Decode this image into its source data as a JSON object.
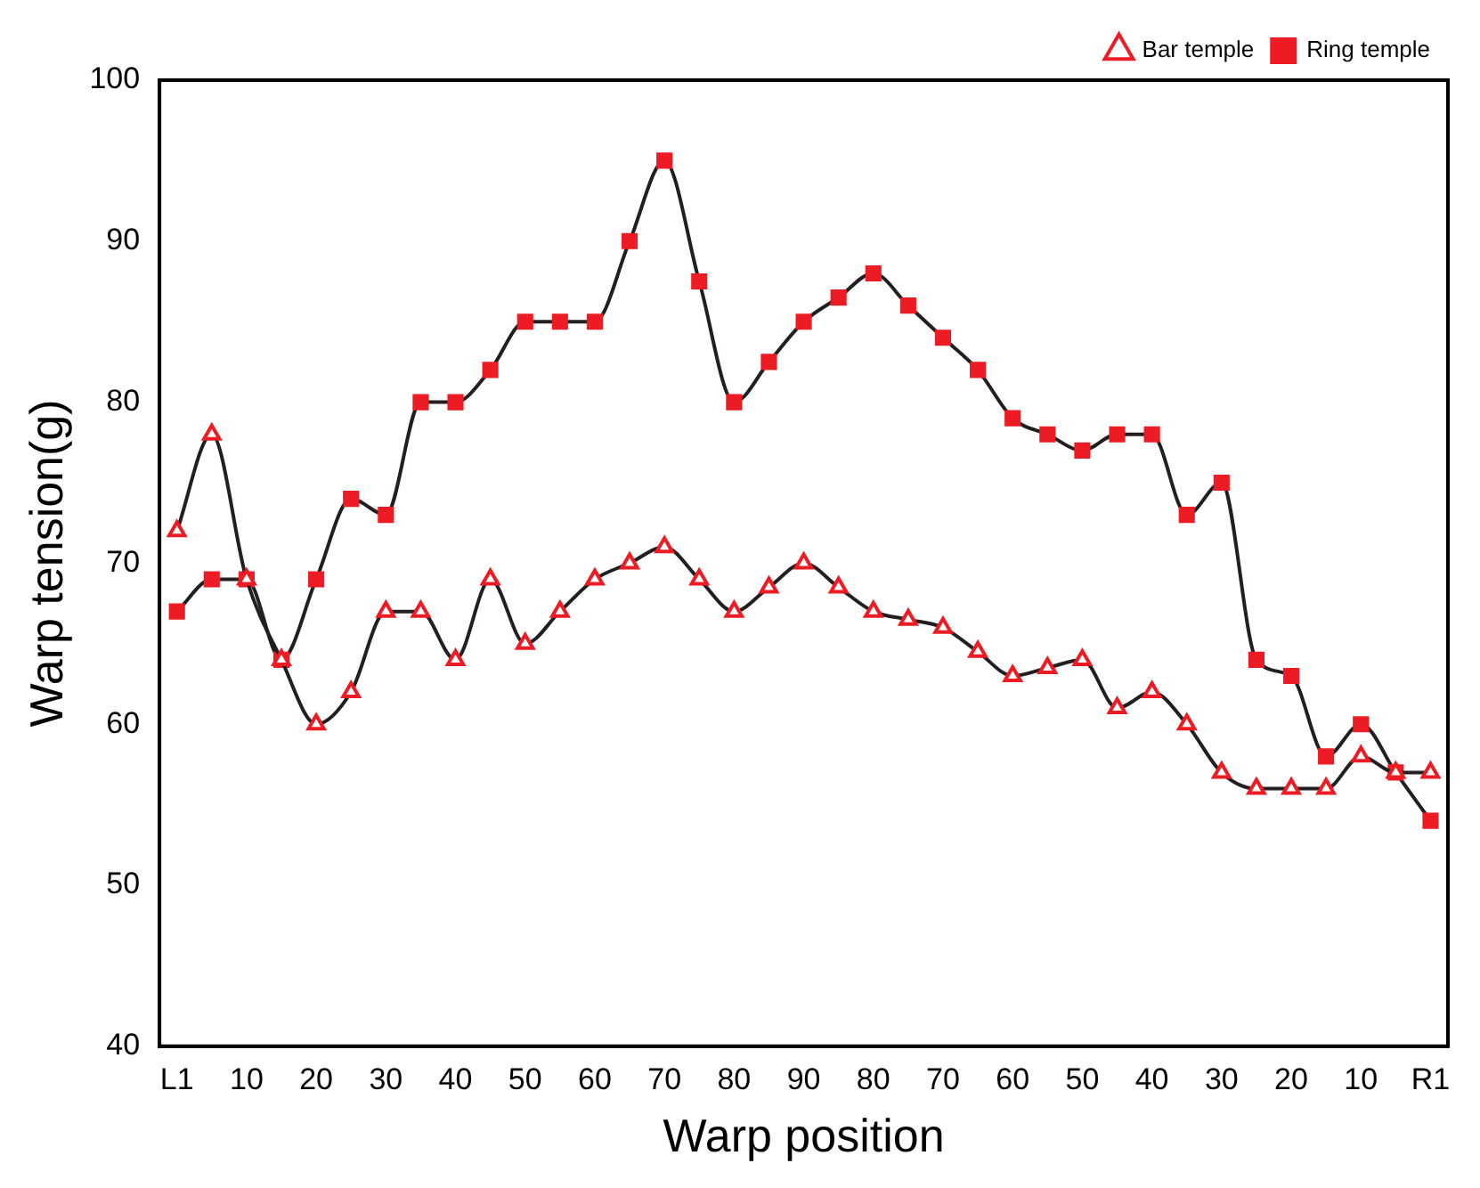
{
  "chart_data": {
    "type": "line",
    "xlabel": "Warp position",
    "ylabel": "Warp tension(g)",
    "categories": [
      "L1",
      null,
      "10",
      null,
      "20",
      null,
      "30",
      null,
      "40",
      null,
      "50",
      null,
      "60",
      null,
      "70",
      null,
      "80",
      null,
      "90",
      null,
      "80",
      null,
      "70",
      null,
      "60",
      null,
      "50",
      null,
      "40",
      null,
      "30",
      null,
      "20",
      null,
      "10",
      null,
      "R1"
    ],
    "series": [
      {
        "name": "Ring temple",
        "color": "#ed1c24",
        "marker": "square",
        "values": [
          67,
          69,
          69,
          64,
          69,
          74,
          73,
          80,
          80,
          82,
          85,
          85,
          85,
          90,
          95,
          87.5,
          80,
          82.5,
          85,
          86.5,
          88,
          86,
          84,
          82,
          79,
          78,
          77,
          78,
          78,
          73,
          75,
          64,
          63,
          58,
          60,
          57,
          54
        ]
      },
      {
        "name": "Bar temple",
        "color": "#ed1c24",
        "marker": "triangle",
        "values": [
          72,
          78,
          69,
          64,
          60,
          62,
          67,
          67,
          64,
          69,
          65,
          67,
          69,
          70,
          71,
          69,
          67,
          68.5,
          70,
          68.5,
          67,
          66.5,
          66,
          64.5,
          63,
          63.5,
          64,
          61,
          62,
          60,
          57,
          56,
          56,
          56,
          58,
          57,
          57
        ]
      }
    ],
    "ylim": [
      40,
      100
    ],
    "yticks": [
      40,
      50,
      60,
      70,
      80,
      90,
      100
    ],
    "grid": false,
    "legend": "top right",
    "line_style": "solid"
  }
}
